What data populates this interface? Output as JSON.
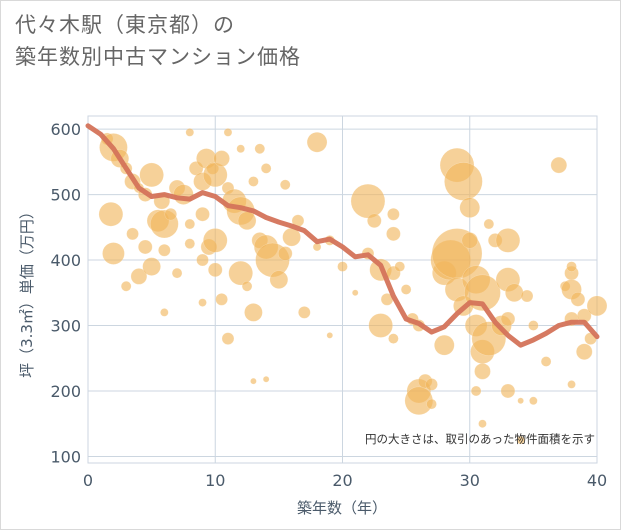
{
  "title": {
    "line1": "代々木駅（東京都）の",
    "line2": "築年数別中古マンション価格"
  },
  "chart_data": {
    "type": "scatter",
    "xlabel": "築年数（年）",
    "ylabel": "坪（3.3㎡）単価（万円）",
    "xlim": [
      0,
      40
    ],
    "ylim": [
      90,
      620
    ],
    "xticks": [
      0,
      10,
      20,
      30,
      40
    ],
    "yticks": [
      100,
      200,
      300,
      400,
      500,
      600
    ],
    "grid": true,
    "note": "円の大きさは、取引のあった物件面積を示す",
    "colors": {
      "bubble": "#f0b55a",
      "line": "#d4735a",
      "grid": "#ccd6e0"
    },
    "trend_line": {
      "x": [
        0,
        1,
        2,
        3,
        4,
        5,
        6,
        7,
        8,
        9,
        10,
        11,
        12,
        13,
        14,
        15,
        16,
        17,
        18,
        19,
        20,
        21,
        22,
        23,
        24,
        25,
        26,
        27,
        28,
        29,
        30,
        31,
        32,
        33,
        34,
        35,
        36,
        37,
        38,
        39,
        40
      ],
      "y": [
        605,
        592,
        570,
        540,
        510,
        497,
        500,
        495,
        493,
        503,
        497,
        483,
        480,
        475,
        465,
        458,
        452,
        445,
        428,
        432,
        420,
        405,
        408,
        392,
        345,
        310,
        303,
        290,
        298,
        318,
        335,
        333,
        305,
        285,
        270,
        278,
        288,
        300,
        305,
        305,
        283
      ]
    },
    "bubbles": [
      {
        "x": 1.5,
        "y": 585,
        "s": 6
      },
      {
        "x": 2.0,
        "y": 572,
        "s": 14
      },
      {
        "x": 2.5,
        "y": 555,
        "s": 9
      },
      {
        "x": 3.0,
        "y": 540,
        "s": 6
      },
      {
        "x": 3.5,
        "y": 520,
        "s": 8
      },
      {
        "x": 4.0,
        "y": 510,
        "s": 5
      },
      {
        "x": 4.5,
        "y": 500,
        "s": 7
      },
      {
        "x": 5.0,
        "y": 530,
        "s": 12
      },
      {
        "x": 1.8,
        "y": 470,
        "s": 12
      },
      {
        "x": 2.0,
        "y": 410,
        "s": 11
      },
      {
        "x": 3.0,
        "y": 360,
        "s": 5
      },
      {
        "x": 4.0,
        "y": 375,
        "s": 8
      },
      {
        "x": 3.5,
        "y": 440,
        "s": 6
      },
      {
        "x": 4.5,
        "y": 420,
        "s": 7
      },
      {
        "x": 5.0,
        "y": 390,
        "s": 9
      },
      {
        "x": 5.5,
        "y": 460,
        "s": 11
      },
      {
        "x": 5.8,
        "y": 490,
        "s": 8
      },
      {
        "x": 6.0,
        "y": 455,
        "s": 14
      },
      {
        "x": 6.5,
        "y": 470,
        "s": 6
      },
      {
        "x": 7.0,
        "y": 510,
        "s": 8
      },
      {
        "x": 7.5,
        "y": 500,
        "s": 10
      },
      {
        "x": 7.0,
        "y": 380,
        "s": 5
      },
      {
        "x": 6.0,
        "y": 320,
        "s": 4
      },
      {
        "x": 6.0,
        "y": 415,
        "s": 6
      },
      {
        "x": 8.0,
        "y": 595,
        "s": 4
      },
      {
        "x": 8.5,
        "y": 540,
        "s": 7
      },
      {
        "x": 9.0,
        "y": 520,
        "s": 9
      },
      {
        "x": 9.3,
        "y": 555,
        "s": 10
      },
      {
        "x": 9.8,
        "y": 540,
        "s": 6
      },
      {
        "x": 10.0,
        "y": 530,
        "s": 12
      },
      {
        "x": 10.5,
        "y": 555,
        "s": 8
      },
      {
        "x": 11.0,
        "y": 595,
        "s": 4
      },
      {
        "x": 8.0,
        "y": 425,
        "s": 5
      },
      {
        "x": 9.0,
        "y": 400,
        "s": 6
      },
      {
        "x": 9.5,
        "y": 420,
        "s": 8
      },
      {
        "x": 10.0,
        "y": 430,
        "s": 12
      },
      {
        "x": 10.0,
        "y": 385,
        "s": 7
      },
      {
        "x": 9.0,
        "y": 335,
        "s": 4
      },
      {
        "x": 9.0,
        "y": 470,
        "s": 7
      },
      {
        "x": 8.0,
        "y": 455,
        "s": 5
      },
      {
        "x": 11.0,
        "y": 510,
        "s": 6
      },
      {
        "x": 11.5,
        "y": 490,
        "s": 12
      },
      {
        "x": 12.0,
        "y": 475,
        "s": 14
      },
      {
        "x": 12.5,
        "y": 460,
        "s": 9
      },
      {
        "x": 12.0,
        "y": 570,
        "s": 4
      },
      {
        "x": 13.0,
        "y": 520,
        "s": 5
      },
      {
        "x": 13.5,
        "y": 570,
        "s": 5
      },
      {
        "x": 14.0,
        "y": 540,
        "s": 5
      },
      {
        "x": 12.0,
        "y": 380,
        "s": 12
      },
      {
        "x": 12.5,
        "y": 360,
        "s": 5
      },
      {
        "x": 13.0,
        "y": 320,
        "s": 9
      },
      {
        "x": 13.5,
        "y": 430,
        "s": 8
      },
      {
        "x": 14.0,
        "y": 420,
        "s": 12
      },
      {
        "x": 14.5,
        "y": 400,
        "s": 17
      },
      {
        "x": 15.0,
        "y": 370,
        "s": 9
      },
      {
        "x": 15.5,
        "y": 410,
        "s": 7
      },
      {
        "x": 16.0,
        "y": 435,
        "s": 9
      },
      {
        "x": 16.5,
        "y": 460,
        "s": 6
      },
      {
        "x": 17.0,
        "y": 320,
        "s": 6
      },
      {
        "x": 15.5,
        "y": 515,
        "s": 5
      },
      {
        "x": 11.0,
        "y": 280,
        "s": 6
      },
      {
        "x": 13.0,
        "y": 215,
        "s": 3
      },
      {
        "x": 14.0,
        "y": 218,
        "s": 3
      },
      {
        "x": 10.5,
        "y": 340,
        "s": 6
      },
      {
        "x": 18.0,
        "y": 580,
        "s": 10
      },
      {
        "x": 18.0,
        "y": 420,
        "s": 4
      },
      {
        "x": 19.0,
        "y": 430,
        "s": 5
      },
      {
        "x": 19.0,
        "y": 285,
        "s": 3
      },
      {
        "x": 20.0,
        "y": 390,
        "s": 5
      },
      {
        "x": 21.0,
        "y": 350,
        "s": 3
      },
      {
        "x": 22.0,
        "y": 490,
        "s": 17
      },
      {
        "x": 22.0,
        "y": 410,
        "s": 6
      },
      {
        "x": 22.5,
        "y": 460,
        "s": 7
      },
      {
        "x": 23.0,
        "y": 385,
        "s": 11
      },
      {
        "x": 23.0,
        "y": 300,
        "s": 12
      },
      {
        "x": 23.5,
        "y": 340,
        "s": 6
      },
      {
        "x": 24.0,
        "y": 470,
        "s": 6
      },
      {
        "x": 24.0,
        "y": 440,
        "s": 7
      },
      {
        "x": 24.0,
        "y": 380,
        "s": 7
      },
      {
        "x": 24.5,
        "y": 390,
        "s": 5
      },
      {
        "x": 24.0,
        "y": 280,
        "s": 5
      },
      {
        "x": 25.0,
        "y": 355,
        "s": 5
      },
      {
        "x": 25.5,
        "y": 310,
        "s": 6
      },
      {
        "x": 26.0,
        "y": 300,
        "s": 6
      },
      {
        "x": 26.0,
        "y": 200,
        "s": 12
      },
      {
        "x": 26.0,
        "y": 185,
        "s": 14
      },
      {
        "x": 26.5,
        "y": 215,
        "s": 7
      },
      {
        "x": 27.0,
        "y": 210,
        "s": 6
      },
      {
        "x": 27.0,
        "y": 180,
        "s": 5
      },
      {
        "x": 28.0,
        "y": 270,
        "s": 10
      },
      {
        "x": 28.0,
        "y": 380,
        "s": 12
      },
      {
        "x": 28.5,
        "y": 400,
        "s": 20
      },
      {
        "x": 29.0,
        "y": 545,
        "s": 17
      },
      {
        "x": 29.5,
        "y": 520,
        "s": 19
      },
      {
        "x": 29.0,
        "y": 410,
        "s": 25
      },
      {
        "x": 29.0,
        "y": 355,
        "s": 12
      },
      {
        "x": 29.5,
        "y": 330,
        "s": 10
      },
      {
        "x": 30.0,
        "y": 480,
        "s": 10
      },
      {
        "x": 30.0,
        "y": 430,
        "s": 8
      },
      {
        "x": 30.5,
        "y": 370,
        "s": 14
      },
      {
        "x": 31.0,
        "y": 350,
        "s": 18
      },
      {
        "x": 30.5,
        "y": 300,
        "s": 11
      },
      {
        "x": 31.0,
        "y": 260,
        "s": 12
      },
      {
        "x": 31.5,
        "y": 280,
        "s": 17
      },
      {
        "x": 31.0,
        "y": 230,
        "s": 8
      },
      {
        "x": 30.5,
        "y": 200,
        "s": 5
      },
      {
        "x": 31.0,
        "y": 150,
        "s": 4
      },
      {
        "x": 31.5,
        "y": 455,
        "s": 5
      },
      {
        "x": 32.0,
        "y": 430,
        "s": 7
      },
      {
        "x": 32.5,
        "y": 300,
        "s": 10
      },
      {
        "x": 33.0,
        "y": 430,
        "s": 12
      },
      {
        "x": 33.0,
        "y": 370,
        "s": 12
      },
      {
        "x": 33.5,
        "y": 350,
        "s": 9
      },
      {
        "x": 33.0,
        "y": 310,
        "s": 7
      },
      {
        "x": 33.0,
        "y": 200,
        "s": 7
      },
      {
        "x": 34.0,
        "y": 125,
        "s": 4
      },
      {
        "x": 34.0,
        "y": 185,
        "s": 3
      },
      {
        "x": 35.0,
        "y": 185,
        "s": 4
      },
      {
        "x": 34.5,
        "y": 345,
        "s": 6
      },
      {
        "x": 35.0,
        "y": 300,
        "s": 5
      },
      {
        "x": 36.0,
        "y": 245,
        "s": 5
      },
      {
        "x": 37.0,
        "y": 545,
        "s": 8
      },
      {
        "x": 37.5,
        "y": 360,
        "s": 5
      },
      {
        "x": 38.0,
        "y": 380,
        "s": 7
      },
      {
        "x": 38.0,
        "y": 355,
        "s": 10
      },
      {
        "x": 38.5,
        "y": 340,
        "s": 7
      },
      {
        "x": 38.0,
        "y": 310,
        "s": 7
      },
      {
        "x": 38.0,
        "y": 210,
        "s": 4
      },
      {
        "x": 38.0,
        "y": 390,
        "s": 5
      },
      {
        "x": 39.0,
        "y": 315,
        "s": 7
      },
      {
        "x": 39.0,
        "y": 260,
        "s": 8
      },
      {
        "x": 39.5,
        "y": 280,
        "s": 6
      },
      {
        "x": 40.0,
        "y": 330,
        "s": 10
      }
    ]
  }
}
